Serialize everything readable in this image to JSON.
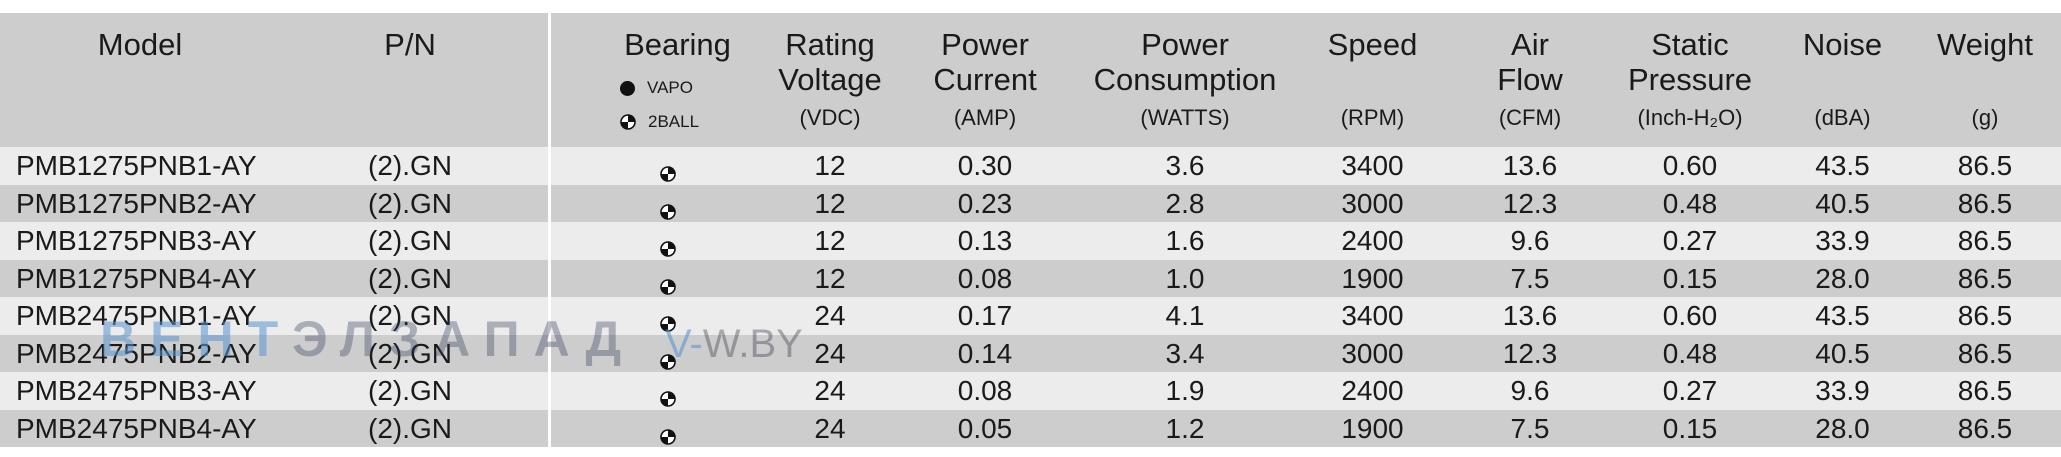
{
  "header": {
    "model": "Model",
    "pn": "P/N",
    "bearing": {
      "title": "Bearing",
      "legend": [
        {
          "icon": "vapo-dot-icon",
          "label": "VAPO"
        },
        {
          "icon": "ball-bearing-icon",
          "label": "2BALL"
        }
      ]
    },
    "voltage": {
      "name_1": "Rating",
      "name_2": "Voltage",
      "unit": "(VDC)"
    },
    "current": {
      "name_1": "Power",
      "name_2": "Current",
      "unit": "(AMP)"
    },
    "power": {
      "name_1": "Power",
      "name_2": "Consumption",
      "unit": "(WATTS)"
    },
    "speed": {
      "name_1": "Speed",
      "unit": "(RPM)"
    },
    "airflow": {
      "name_1": "Air",
      "name_2": "Flow",
      "unit": "(CFM)"
    },
    "pressure": {
      "name_1": "Static",
      "name_2": "Pressure",
      "unit": "(Inch-H₂O)"
    },
    "noise": {
      "name_1": "Noise",
      "unit": "(dBA)"
    },
    "weight": {
      "name_1": "Weight",
      "unit": "(g)"
    }
  },
  "rows": [
    {
      "model": "PMB1275PNB1-AY",
      "pn": "(2).GN",
      "bearing": "2BALL",
      "voltage": "12",
      "current": "0.30",
      "power": "3.6",
      "speed": "3400",
      "airflow": "13.6",
      "pressure": "0.60",
      "noise": "43.5",
      "weight": "86.5"
    },
    {
      "model": "PMB1275PNB2-AY",
      "pn": "(2).GN",
      "bearing": "2BALL",
      "voltage": "12",
      "current": "0.23",
      "power": "2.8",
      "speed": "3000",
      "airflow": "12.3",
      "pressure": "0.48",
      "noise": "40.5",
      "weight": "86.5"
    },
    {
      "model": "PMB1275PNB3-AY",
      "pn": "(2).GN",
      "bearing": "2BALL",
      "voltage": "12",
      "current": "0.13",
      "power": "1.6",
      "speed": "2400",
      "airflow": "9.6",
      "pressure": "0.27",
      "noise": "33.9",
      "weight": "86.5"
    },
    {
      "model": "PMB1275PNB4-AY",
      "pn": "(2).GN",
      "bearing": "2BALL",
      "voltage": "12",
      "current": "0.08",
      "power": "1.0",
      "speed": "1900",
      "airflow": "7.5",
      "pressure": "0.15",
      "noise": "28.0",
      "weight": "86.5"
    },
    {
      "model": "PMB2475PNB1-AY",
      "pn": "(2).GN",
      "bearing": "2BALL",
      "voltage": "24",
      "current": "0.17",
      "power": "4.1",
      "speed": "3400",
      "airflow": "13.6",
      "pressure": "0.60",
      "noise": "43.5",
      "weight": "86.5"
    },
    {
      "model": "PMB2475PNB2-AY",
      "pn": "(2).GN",
      "bearing": "2BALL",
      "voltage": "24",
      "current": "0.14",
      "power": "3.4",
      "speed": "3000",
      "airflow": "12.3",
      "pressure": "0.48",
      "noise": "40.5",
      "weight": "86.5"
    },
    {
      "model": "PMB2475PNB3-AY",
      "pn": "(2).GN",
      "bearing": "2BALL",
      "voltage": "24",
      "current": "0.08",
      "power": "1.9",
      "speed": "2400",
      "airflow": "9.6",
      "pressure": "0.27",
      "noise": "33.9",
      "weight": "86.5"
    },
    {
      "model": "PMB2475PNB4-AY",
      "pn": "(2).GN",
      "bearing": "2BALL",
      "voltage": "24",
      "current": "0.05",
      "power": "1.2",
      "speed": "1900",
      "airflow": "7.5",
      "pressure": "0.15",
      "noise": "28.0",
      "weight": "86.5"
    }
  ],
  "watermark": {
    "brand_accent": "ВЕНТ",
    "brand_rest": "ЭЛЗАПАД",
    "site_accent": "V-",
    "site_rest": "W.BY"
  },
  "colors": {
    "header_bg": "#cdcdcd",
    "row_light": "#ececec",
    "row_dark": "#cdcdcd"
  }
}
